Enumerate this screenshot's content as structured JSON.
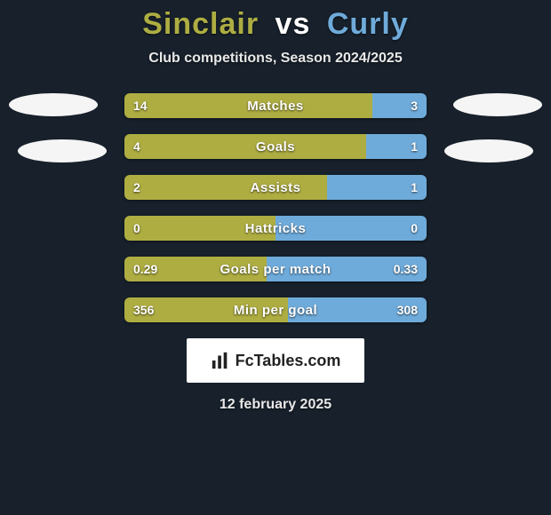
{
  "title": {
    "player1": "Sinclair",
    "vs": "vs",
    "player2": "Curly",
    "player1_color": "#aead42",
    "vs_color": "#ffffff",
    "player2_color": "#6fabda"
  },
  "subtitle": "Club competitions, Season 2024/2025",
  "colors": {
    "left_bar": "#aead42",
    "right_bar": "#6fabda",
    "background": "#17202b",
    "oval": "#f5f5f5"
  },
  "rows": [
    {
      "label": "Matches",
      "left_val": "14",
      "right_val": "3",
      "left_pct": 82,
      "right_pct": 18
    },
    {
      "label": "Goals",
      "left_val": "4",
      "right_val": "1",
      "left_pct": 80,
      "right_pct": 20
    },
    {
      "label": "Assists",
      "left_val": "2",
      "right_val": "1",
      "left_pct": 67,
      "right_pct": 33
    },
    {
      "label": "Hattricks",
      "left_val": "0",
      "right_val": "0",
      "left_pct": 50,
      "right_pct": 50
    },
    {
      "label": "Goals per match",
      "left_val": "0.29",
      "right_val": "0.33",
      "left_pct": 47,
      "right_pct": 53
    },
    {
      "label": "Min per goal",
      "left_val": "356",
      "right_val": "308",
      "left_pct": 54,
      "right_pct": 46
    }
  ],
  "logo_text": "FcTables.com",
  "date": "12 february 2025"
}
